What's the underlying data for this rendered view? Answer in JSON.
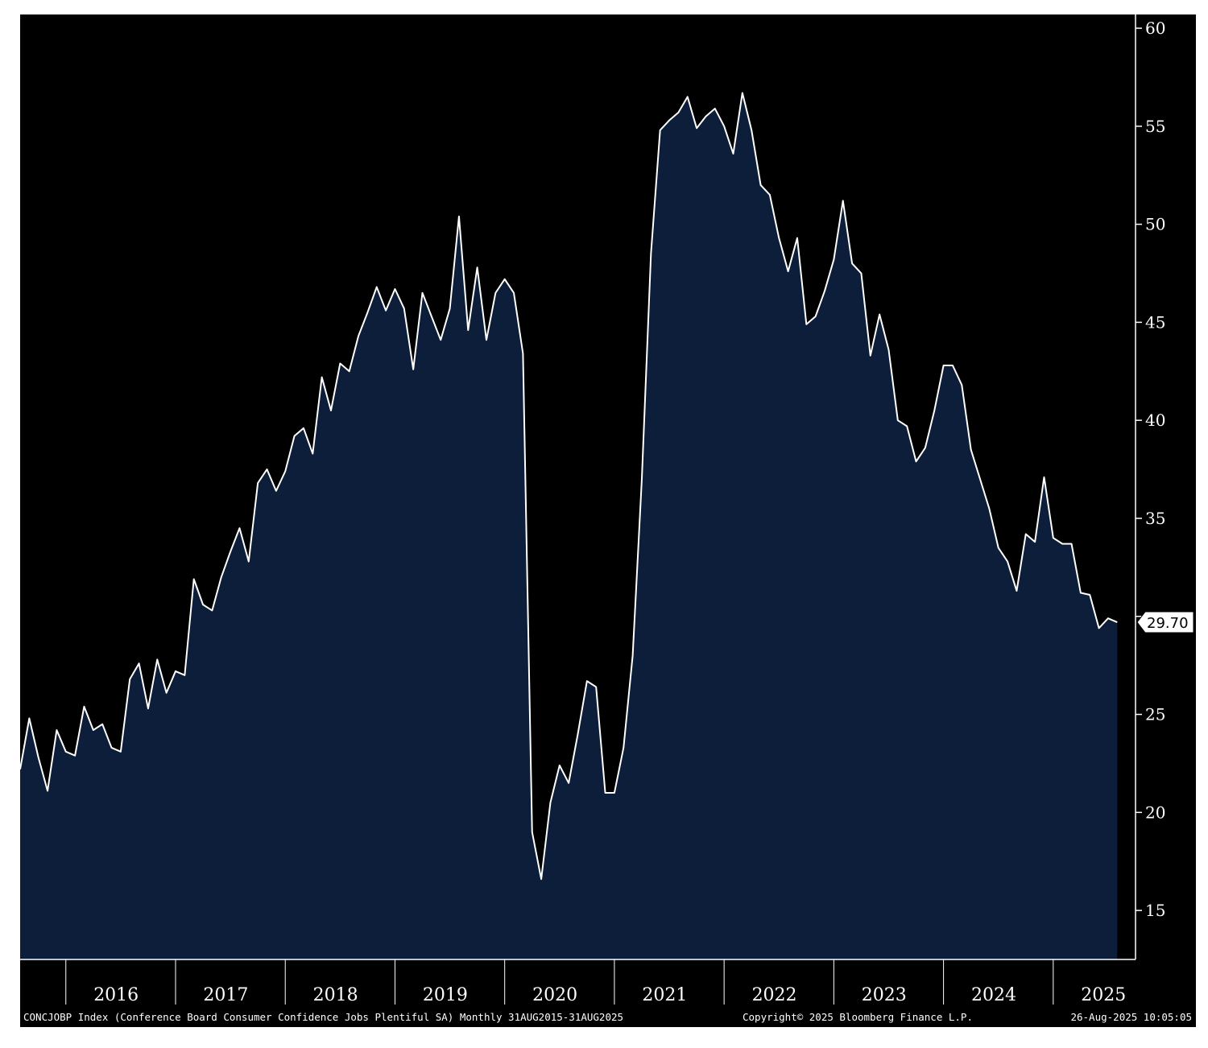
{
  "chart_data": {
    "type": "area",
    "title": "",
    "xlabel": "",
    "ylabel": "",
    "ylim": [
      12.5,
      60.7
    ],
    "y_ticks": [
      15,
      20,
      25,
      30,
      35,
      40,
      45,
      50,
      55,
      60
    ],
    "y_tick_labels": [
      "15",
      "20",
      "25",
      "",
      "35",
      "40",
      "45",
      "50",
      "55",
      "60"
    ],
    "x_year_labels": [
      "2016",
      "2017",
      "2018",
      "2019",
      "2020",
      "2021",
      "2022",
      "2023",
      "2024",
      "2025"
    ],
    "x_start": "2015-08",
    "x_end": "2025-10",
    "grid": false,
    "line_color": "#ffffff",
    "fill_color": "#0d1e3a",
    "background_color": "#000000",
    "last_value_label": "29.70",
    "series": [
      {
        "values": [
          {
            "x": "2015-08",
            "y": 22.2
          },
          {
            "x": "2015-09",
            "y": 24.8
          },
          {
            "x": "2015-10",
            "y": 22.8
          },
          {
            "x": "2015-11",
            "y": 21.1
          },
          {
            "x": "2015-12",
            "y": 24.2
          },
          {
            "x": "2016-01",
            "y": 23.1
          },
          {
            "x": "2016-02",
            "y": 22.9
          },
          {
            "x": "2016-03",
            "y": 25.4
          },
          {
            "x": "2016-04",
            "y": 24.2
          },
          {
            "x": "2016-05",
            "y": 24.5
          },
          {
            "x": "2016-06",
            "y": 23.3
          },
          {
            "x": "2016-07",
            "y": 23.1
          },
          {
            "x": "2016-08",
            "y": 26.8
          },
          {
            "x": "2016-09",
            "y": 27.6
          },
          {
            "x": "2016-10",
            "y": 25.3
          },
          {
            "x": "2016-11",
            "y": 27.8
          },
          {
            "x": "2016-12",
            "y": 26.1
          },
          {
            "x": "2017-01",
            "y": 27.2
          },
          {
            "x": "2017-02",
            "y": 27.0
          },
          {
            "x": "2017-03",
            "y": 31.9
          },
          {
            "x": "2017-04",
            "y": 30.6
          },
          {
            "x": "2017-05",
            "y": 30.3
          },
          {
            "x": "2017-06",
            "y": 32.0
          },
          {
            "x": "2017-07",
            "y": 33.3
          },
          {
            "x": "2017-08",
            "y": 34.5
          },
          {
            "x": "2017-09",
            "y": 32.8
          },
          {
            "x": "2017-10",
            "y": 36.8
          },
          {
            "x": "2017-11",
            "y": 37.5
          },
          {
            "x": "2017-12",
            "y": 36.4
          },
          {
            "x": "2018-01",
            "y": 37.4
          },
          {
            "x": "2018-02",
            "y": 39.2
          },
          {
            "x": "2018-03",
            "y": 39.6
          },
          {
            "x": "2018-04",
            "y": 38.3
          },
          {
            "x": "2018-05",
            "y": 42.2
          },
          {
            "x": "2018-06",
            "y": 40.5
          },
          {
            "x": "2018-07",
            "y": 42.9
          },
          {
            "x": "2018-08",
            "y": 42.5
          },
          {
            "x": "2018-09",
            "y": 44.3
          },
          {
            "x": "2018-10",
            "y": 45.5
          },
          {
            "x": "2018-11",
            "y": 46.8
          },
          {
            "x": "2018-12",
            "y": 45.6
          },
          {
            "x": "2019-01",
            "y": 46.7
          },
          {
            "x": "2019-02",
            "y": 45.7
          },
          {
            "x": "2019-03",
            "y": 42.6
          },
          {
            "x": "2019-04",
            "y": 46.5
          },
          {
            "x": "2019-05",
            "y": 45.3
          },
          {
            "x": "2019-06",
            "y": 44.1
          },
          {
            "x": "2019-07",
            "y": 45.7
          },
          {
            "x": "2019-08",
            "y": 50.4
          },
          {
            "x": "2019-09",
            "y": 44.6
          },
          {
            "x": "2019-10",
            "y": 47.8
          },
          {
            "x": "2019-11",
            "y": 44.1
          },
          {
            "x": "2019-12",
            "y": 46.5
          },
          {
            "x": "2020-01",
            "y": 47.2
          },
          {
            "x": "2020-02",
            "y": 46.5
          },
          {
            "x": "2020-03",
            "y": 43.4
          },
          {
            "x": "2020-04",
            "y": 19.0
          },
          {
            "x": "2020-05",
            "y": 16.6
          },
          {
            "x": "2020-06",
            "y": 20.5
          },
          {
            "x": "2020-07",
            "y": 22.4
          },
          {
            "x": "2020-08",
            "y": 21.5
          },
          {
            "x": "2020-09",
            "y": 24.0
          },
          {
            "x": "2020-10",
            "y": 26.7
          },
          {
            "x": "2020-11",
            "y": 26.4
          },
          {
            "x": "2020-12",
            "y": 21.0
          },
          {
            "x": "2021-01",
            "y": 21.0
          },
          {
            "x": "2021-02",
            "y": 23.3
          },
          {
            "x": "2021-03",
            "y": 28.0
          },
          {
            "x": "2021-04",
            "y": 37.0
          },
          {
            "x": "2021-05",
            "y": 48.5
          },
          {
            "x": "2021-06",
            "y": 54.8
          },
          {
            "x": "2021-07",
            "y": 55.3
          },
          {
            "x": "2021-08",
            "y": 55.7
          },
          {
            "x": "2021-09",
            "y": 56.5
          },
          {
            "x": "2021-10",
            "y": 54.9
          },
          {
            "x": "2021-11",
            "y": 55.5
          },
          {
            "x": "2021-12",
            "y": 55.9
          },
          {
            "x": "2022-01",
            "y": 55.0
          },
          {
            "x": "2022-02",
            "y": 53.6
          },
          {
            "x": "2022-03",
            "y": 56.7
          },
          {
            "x": "2022-04",
            "y": 54.8
          },
          {
            "x": "2022-05",
            "y": 52.0
          },
          {
            "x": "2022-06",
            "y": 51.5
          },
          {
            "x": "2022-07",
            "y": 49.3
          },
          {
            "x": "2022-08",
            "y": 47.6
          },
          {
            "x": "2022-09",
            "y": 49.3
          },
          {
            "x": "2022-10",
            "y": 44.9
          },
          {
            "x": "2022-11",
            "y": 45.3
          },
          {
            "x": "2022-12",
            "y": 46.6
          },
          {
            "x": "2023-01",
            "y": 48.2
          },
          {
            "x": "2023-02",
            "y": 51.2
          },
          {
            "x": "2023-03",
            "y": 48.0
          },
          {
            "x": "2023-04",
            "y": 47.5
          },
          {
            "x": "2023-05",
            "y": 43.3
          },
          {
            "x": "2023-06",
            "y": 45.4
          },
          {
            "x": "2023-07",
            "y": 43.6
          },
          {
            "x": "2023-08",
            "y": 40.0
          },
          {
            "x": "2023-09",
            "y": 39.7
          },
          {
            "x": "2023-10",
            "y": 37.9
          },
          {
            "x": "2023-11",
            "y": 38.6
          },
          {
            "x": "2023-12",
            "y": 40.5
          },
          {
            "x": "2024-01",
            "y": 42.8
          },
          {
            "x": "2024-02",
            "y": 42.8
          },
          {
            "x": "2024-03",
            "y": 41.8
          },
          {
            "x": "2024-04",
            "y": 38.5
          },
          {
            "x": "2024-05",
            "y": 37.0
          },
          {
            "x": "2024-06",
            "y": 35.5
          },
          {
            "x": "2024-07",
            "y": 33.5
          },
          {
            "x": "2024-08",
            "y": 32.8
          },
          {
            "x": "2024-09",
            "y": 31.3
          },
          {
            "x": "2024-10",
            "y": 34.2
          },
          {
            "x": "2024-11",
            "y": 33.8
          },
          {
            "x": "2024-12",
            "y": 37.1
          },
          {
            "x": "2025-01",
            "y": 34.0
          },
          {
            "x": "2025-02",
            "y": 33.7
          },
          {
            "x": "2025-03",
            "y": 33.7
          },
          {
            "x": "2025-04",
            "y": 31.2
          },
          {
            "x": "2025-05",
            "y": 31.1
          },
          {
            "x": "2025-06",
            "y": 29.4
          },
          {
            "x": "2025-07",
            "y": 29.9
          },
          {
            "x": "2025-08",
            "y": 29.7
          }
        ]
      }
    ]
  },
  "footer": {
    "description": "CONCJOBP Index (Conference Board Consumer Confidence Jobs Plentiful SA)  Monthly 31AUG2015-31AUG2025",
    "copyright": "Copyright© 2025 Bloomberg Finance L.P.",
    "timestamp": "26-Aug-2025 10:05:05"
  }
}
